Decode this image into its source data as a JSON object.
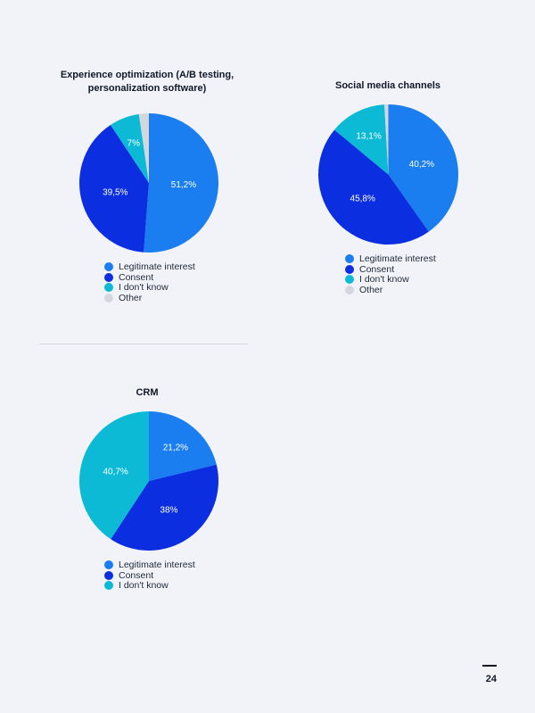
{
  "colors": {
    "legitimate_interest": "#1a7ef0",
    "consent": "#0a2ee0",
    "i_dont_know": "#0cbad6",
    "other": "#d4d7de"
  },
  "legend_labels": [
    "Legitimate interest",
    "Consent",
    "I don't know",
    "Other"
  ],
  "chart_data": [
    {
      "type": "pie",
      "title": "Experience optimization (A/B testing, personalization software)",
      "categories": [
        "Legitimate interest",
        "Consent",
        "I don't know",
        "Other"
      ],
      "values": [
        51.2,
        39.5,
        7,
        2.3
      ],
      "labels": [
        "51,2%",
        "39,5%",
        "7%",
        ""
      ],
      "legend_placement": "bottom"
    },
    {
      "type": "pie",
      "title": "Social media channels",
      "categories": [
        "Legitimate interest",
        "Consent",
        "I don't know",
        "Other"
      ],
      "values": [
        40.2,
        45.8,
        13.1,
        0.9
      ],
      "labels": [
        "40,2%",
        "45,8%",
        "13,1%",
        ""
      ],
      "legend_placement": "bottom"
    },
    {
      "type": "pie",
      "title": "CRM",
      "categories": [
        "Legitimate interest",
        "Consent",
        "I don't know"
      ],
      "values": [
        21.2,
        38,
        40.7
      ],
      "labels": [
        "21,2%",
        "38%",
        "40,7%"
      ],
      "legend_placement": "bottom"
    }
  ],
  "page": {
    "number": "24"
  }
}
